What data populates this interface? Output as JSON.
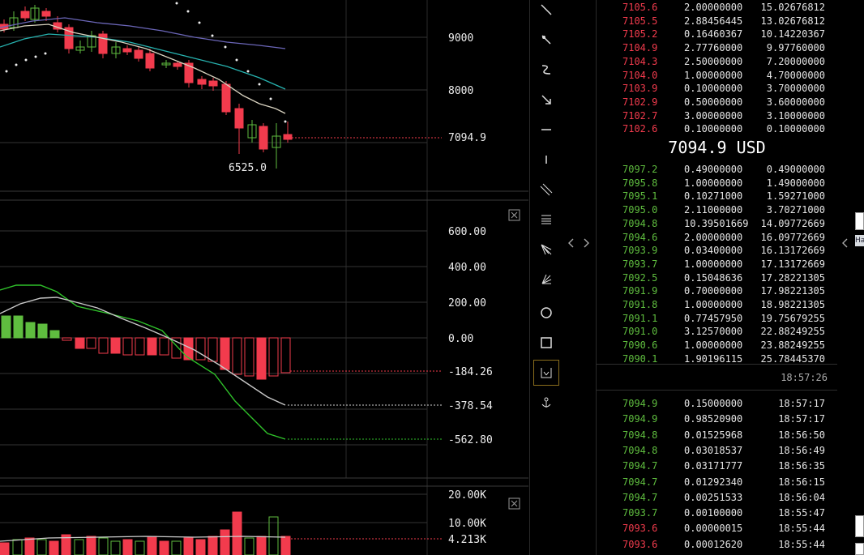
{
  "price_panel": {
    "axis_labels": [
      "9000",
      "8000",
      "7094.9"
    ],
    "low_label": "6525.0"
  },
  "macd_panel": {
    "axis_labels": [
      "600.00",
      "400.00",
      "200.00",
      "0.00",
      "-184.26",
      "-378.54",
      "-562.80"
    ]
  },
  "volume_panel": {
    "axis_labels": [
      "20.00K",
      "10.00K",
      "4.213K"
    ]
  },
  "colors": {
    "up": "#5fbd3f",
    "down": "#f23b4d",
    "macd_line": "#c8c8c8",
    "signal_line": "#2fc12a",
    "ma_fast": "#d9d3c0",
    "ma_mid": "#27b3b0",
    "ma_slow": "#6b66b8"
  },
  "toolbar": {
    "tools": [
      "trend-line-icon",
      "arrow-pointer-icon",
      "brush-icon",
      "arrow-line-icon",
      "horizontal-line-icon",
      "horizontal-ray-icon",
      "parallel-channel-icon",
      "fib-retracement-icon",
      "pitchfork-icon",
      "gann-fan-icon",
      "circle-icon",
      "rectangle-icon",
      "measure-icon",
      "anchor-icon"
    ],
    "active": "measure-icon"
  },
  "orderbook": {
    "asks": [
      {
        "price": "7105.6",
        "amount": "2.00000000",
        "total": "15.02676812"
      },
      {
        "price": "7105.5",
        "amount": "2.88456445",
        "total": "13.02676812"
      },
      {
        "price": "7105.2",
        "amount": "0.16460367",
        "total": "10.14220367"
      },
      {
        "price": "7104.9",
        "amount": "2.77760000",
        "total": "9.97760000"
      },
      {
        "price": "7104.3",
        "amount": "2.50000000",
        "total": "7.20000000"
      },
      {
        "price": "7104.0",
        "amount": "1.00000000",
        "total": "4.70000000"
      },
      {
        "price": "7103.9",
        "amount": "0.10000000",
        "total": "3.70000000"
      },
      {
        "price": "7102.9",
        "amount": "0.50000000",
        "total": "3.60000000"
      },
      {
        "price": "7102.7",
        "amount": "3.00000000",
        "total": "3.10000000"
      },
      {
        "price": "7102.6",
        "amount": "0.10000000",
        "total": "0.10000000"
      }
    ],
    "last_price": "7094.9 USD",
    "bids": [
      {
        "price": "7097.2",
        "amount": "0.49000000",
        "total": "0.49000000"
      },
      {
        "price": "7095.8",
        "amount": "1.00000000",
        "total": "1.49000000"
      },
      {
        "price": "7095.1",
        "amount": "0.10271000",
        "total": "1.59271000"
      },
      {
        "price": "7095.0",
        "amount": "2.11000000",
        "total": "3.70271000"
      },
      {
        "price": "7094.8",
        "amount": "10.39501669",
        "total": "14.09772669"
      },
      {
        "price": "7094.6",
        "amount": "2.00000000",
        "total": "16.09772669"
      },
      {
        "price": "7093.9",
        "amount": "0.03400000",
        "total": "16.13172669"
      },
      {
        "price": "7093.7",
        "amount": "1.00000000",
        "total": "17.13172669"
      },
      {
        "price": "7092.5",
        "amount": "0.15048636",
        "total": "17.28221305"
      },
      {
        "price": "7091.9",
        "amount": "0.70000000",
        "total": "17.98221305"
      },
      {
        "price": "7091.8",
        "amount": "1.00000000",
        "total": "18.98221305"
      },
      {
        "price": "7091.1",
        "amount": "0.77457950",
        "total": "19.75679255"
      },
      {
        "price": "7091.0",
        "amount": "3.12570000",
        "total": "22.88249255"
      },
      {
        "price": "7090.6",
        "amount": "1.00000000",
        "total": "23.88249255"
      },
      {
        "price": "7090.1",
        "amount": "1.90196115",
        "total": "25.78445370"
      }
    ]
  },
  "trades": {
    "clock": "18:57:26",
    "rows": [
      {
        "price": "7094.9",
        "amount": "0.15000000",
        "time": "18:57:17",
        "side": "buy"
      },
      {
        "price": "7094.9",
        "amount": "0.98520900",
        "time": "18:57:17",
        "side": "buy"
      },
      {
        "price": "7094.8",
        "amount": "0.01525968",
        "time": "18:56:50",
        "side": "buy"
      },
      {
        "price": "7094.8",
        "amount": "0.03018537",
        "time": "18:56:49",
        "side": "buy"
      },
      {
        "price": "7094.7",
        "amount": "0.03171777",
        "time": "18:56:35",
        "side": "buy"
      },
      {
        "price": "7094.7",
        "amount": "0.01292340",
        "time": "18:56:15",
        "side": "buy"
      },
      {
        "price": "7094.7",
        "amount": "0.00251533",
        "time": "18:56:04",
        "side": "buy"
      },
      {
        "price": "7093.7",
        "amount": "0.00100000",
        "time": "18:55:47",
        "side": "buy"
      },
      {
        "price": "7093.6",
        "amount": "0.00000015",
        "time": "18:55:44",
        "side": "sell"
      },
      {
        "price": "7093.6",
        "amount": "0.00012620",
        "time": "18:55:44",
        "side": "sell"
      }
    ]
  },
  "side_strip": {
    "tab_label": "Ha"
  }
}
